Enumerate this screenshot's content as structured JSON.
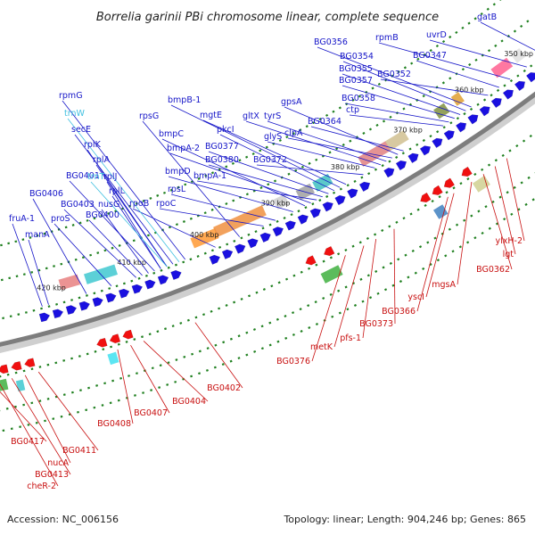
{
  "title": "Borrelia garinii PBi chromosome linear, complete sequence",
  "footer": {
    "accession": "Accession: NC_006156",
    "summary": "Topology: linear; Length: 904,246 bp; Genes: 865"
  },
  "colors": {
    "forward_gene": "#1a10e0",
    "reverse_gene": "#f01010",
    "backbone": "#888888",
    "tick": "#208020",
    "forward_label": "#1515c8",
    "reverse_label": "#c81010",
    "rna_label": "#40c0e0"
  },
  "scale_labels": [
    "420 kbp",
    "410 kbp",
    "400 kbp",
    "390 kbp",
    "380 kbp",
    "370 kbp",
    "360 kbp",
    "350 kbp"
  ],
  "forward_labels": [
    {
      "text": "gatB"
    },
    {
      "text": "uvrD"
    },
    {
      "text": "rpmB"
    },
    {
      "text": "BG0347"
    },
    {
      "text": "BG0356"
    },
    {
      "text": "BG0354"
    },
    {
      "text": "BG0355"
    },
    {
      "text": "BG0352"
    },
    {
      "text": "BG0357"
    },
    {
      "text": "BG0358"
    },
    {
      "text": "ctp"
    },
    {
      "text": "BG0364"
    },
    {
      "text": "gpsA"
    },
    {
      "text": "tyrS"
    },
    {
      "text": "gltX"
    },
    {
      "text": "clpA"
    },
    {
      "text": "glyS"
    },
    {
      "text": "bmpB-1"
    },
    {
      "text": "mgtE"
    },
    {
      "text": "pkcI"
    },
    {
      "text": "BG0377"
    },
    {
      "text": "bmpC"
    },
    {
      "text": "bmpA-2"
    },
    {
      "text": "BG0380"
    },
    {
      "text": "BG0372"
    },
    {
      "text": "bmpD"
    },
    {
      "text": "bmpA-1"
    },
    {
      "text": "rpsG"
    },
    {
      "text": "rpsL"
    },
    {
      "text": "rpoC"
    },
    {
      "text": "rpoB"
    },
    {
      "text": "rpmG"
    },
    {
      "text": "secE"
    },
    {
      "text": "rplK"
    },
    {
      "text": "rplA"
    },
    {
      "text": "rplJ"
    },
    {
      "text": "BG0401"
    },
    {
      "text": "rplL"
    },
    {
      "text": "BG0406"
    },
    {
      "text": "BG0403"
    },
    {
      "text": "nusG"
    },
    {
      "text": "fruA-1"
    },
    {
      "text": "proS"
    },
    {
      "text": "BG0400"
    },
    {
      "text": "manA"
    }
  ],
  "rna_labels": [
    {
      "text": "trnW"
    },
    {
      "text": "trnT"
    }
  ],
  "reverse_labels": [
    {
      "text": "ylxH-2"
    },
    {
      "text": "lgt"
    },
    {
      "text": "BG0362"
    },
    {
      "text": "mgsA"
    },
    {
      "text": "yscI"
    },
    {
      "text": "BG0366"
    },
    {
      "text": "BG0373"
    },
    {
      "text": "pfs-1"
    },
    {
      "text": "metK"
    },
    {
      "text": "BG0376"
    },
    {
      "text": "BG0402"
    },
    {
      "text": "BG0404"
    },
    {
      "text": "BG0407"
    },
    {
      "text": "BG0408"
    },
    {
      "text": "BG0411"
    },
    {
      "text": "BG0417"
    },
    {
      "text": "BG0413"
    },
    {
      "text": "nucA"
    },
    {
      "text": "cheR-2"
    }
  ]
}
